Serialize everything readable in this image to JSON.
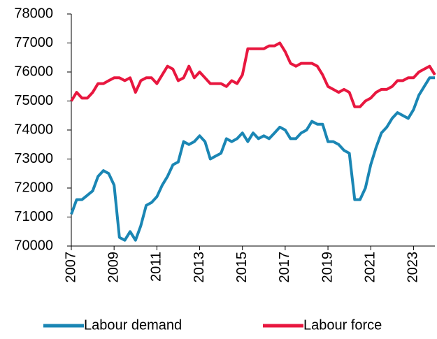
{
  "chart_data": {
    "type": "line",
    "x": [
      2007,
      2007.25,
      2007.5,
      2007.75,
      2008,
      2008.25,
      2008.5,
      2008.75,
      2009,
      2009.25,
      2009.5,
      2009.75,
      2010,
      2010.25,
      2010.5,
      2010.75,
      2011,
      2011.25,
      2011.5,
      2011.75,
      2012,
      2012.25,
      2012.5,
      2012.75,
      2013,
      2013.25,
      2013.5,
      2013.75,
      2014,
      2014.25,
      2014.5,
      2014.75,
      2015,
      2015.25,
      2015.5,
      2015.75,
      2016,
      2016.25,
      2016.5,
      2016.75,
      2017,
      2017.25,
      2017.5,
      2017.75,
      2018,
      2018.25,
      2018.5,
      2018.75,
      2019,
      2019.25,
      2019.5,
      2019.75,
      2020,
      2020.25,
      2020.5,
      2020.75,
      2021,
      2021.25,
      2021.5,
      2021.75,
      2022,
      2022.25,
      2022.5,
      2022.75,
      2023,
      2023.25,
      2023.5,
      2023.75,
      2024
    ],
    "series": [
      {
        "name": "Labour demand",
        "color": "#1a86b4",
        "values": [
          71100,
          71600,
          71600,
          71750,
          71900,
          72400,
          72600,
          72500,
          72100,
          70300,
          70200,
          70500,
          70200,
          70700,
          71400,
          71500,
          71700,
          72100,
          72400,
          72800,
          72900,
          73600,
          73500,
          73600,
          73800,
          73600,
          73000,
          73100,
          73200,
          73700,
          73600,
          73700,
          73900,
          73600,
          73900,
          73700,
          73800,
          73700,
          73900,
          74100,
          74000,
          73700,
          73700,
          73900,
          74000,
          74300,
          74200,
          74200,
          73600,
          73600,
          73500,
          73300,
          73200,
          71600,
          71600,
          72000,
          72800,
          73400,
          73900,
          74100,
          74400,
          74600,
          74500,
          74400,
          74700,
          75200,
          75500,
          75800,
          75800
        ]
      },
      {
        "name": "Labour force",
        "color": "#e8173f",
        "values": [
          75000,
          75300,
          75100,
          75100,
          75300,
          75600,
          75600,
          75700,
          75800,
          75800,
          75700,
          75800,
          75300,
          75700,
          75800,
          75800,
          75600,
          75900,
          76200,
          76100,
          75700,
          75800,
          76200,
          75800,
          76000,
          75800,
          75600,
          75600,
          75600,
          75500,
          75700,
          75600,
          75900,
          76800,
          76800,
          76800,
          76800,
          76900,
          76900,
          77000,
          76700,
          76300,
          76200,
          76300,
          76300,
          76300,
          76200,
          75900,
          75500,
          75400,
          75300,
          75400,
          75300,
          74800,
          74800,
          75000,
          75100,
          75300,
          75400,
          75400,
          75500,
          75700,
          75700,
          75800,
          75800,
          76000,
          76100,
          76200,
          75900
        ]
      }
    ],
    "xlim": [
      2007,
      2024
    ],
    "xticks": [
      2007,
      2009,
      2011,
      2013,
      2015,
      2017,
      2019,
      2021,
      2023
    ],
    "ylim": [
      70000,
      78000
    ],
    "yticks": [
      70000,
      71000,
      72000,
      73000,
      74000,
      75000,
      76000,
      77000,
      78000
    ],
    "grid": false,
    "legend": "bottom"
  }
}
